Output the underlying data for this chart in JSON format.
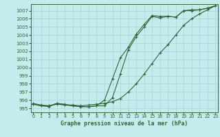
{
  "title": "Graphe pression niveau de la mer (hPa)",
  "x_ticks": [
    0,
    1,
    2,
    3,
    4,
    5,
    6,
    7,
    8,
    9,
    10,
    11,
    12,
    13,
    14,
    15,
    16,
    17,
    18,
    19,
    20,
    21,
    22,
    23
  ],
  "ylim": [
    994.5,
    1007.8
  ],
  "xlim": [
    -0.3,
    23.3
  ],
  "yticks": [
    995,
    996,
    997,
    998,
    999,
    1000,
    1001,
    1002,
    1003,
    1004,
    1005,
    1006,
    1007
  ],
  "background_color": "#c5eced",
  "grid_color": "#a8d5d8",
  "line_color": "#2d6630",
  "line1": [
    995.5,
    995.3,
    995.3,
    995.6,
    995.4,
    995.3,
    995.2,
    995.2,
    995.3,
    996.0,
    998.6,
    1001.2,
    1002.5,
    1004.1,
    1005.3,
    1006.4,
    1006.3,
    1006.3,
    1006.2,
    1007.0,
    1007.1,
    1007.1,
    1007.3,
    1007.6
  ],
  "line2": [
    995.5,
    995.3,
    995.2,
    995.6,
    995.5,
    995.3,
    995.2,
    995.2,
    995.3,
    995.3,
    996.3,
    999.2,
    1002.2,
    1003.8,
    1005.0,
    1006.3,
    1006.1,
    1006.3,
    1006.2,
    1007.0,
    1007.0,
    1007.1,
    1007.3,
    1007.6
  ],
  "line3": [
    995.6,
    995.4,
    995.3,
    995.5,
    995.4,
    995.4,
    995.3,
    995.4,
    995.5,
    995.6,
    995.8,
    996.2,
    997.0,
    998.0,
    999.2,
    1000.5,
    1001.8,
    1002.8,
    1004.0,
    1005.2,
    1006.0,
    1006.6,
    1007.1,
    1007.6
  ]
}
